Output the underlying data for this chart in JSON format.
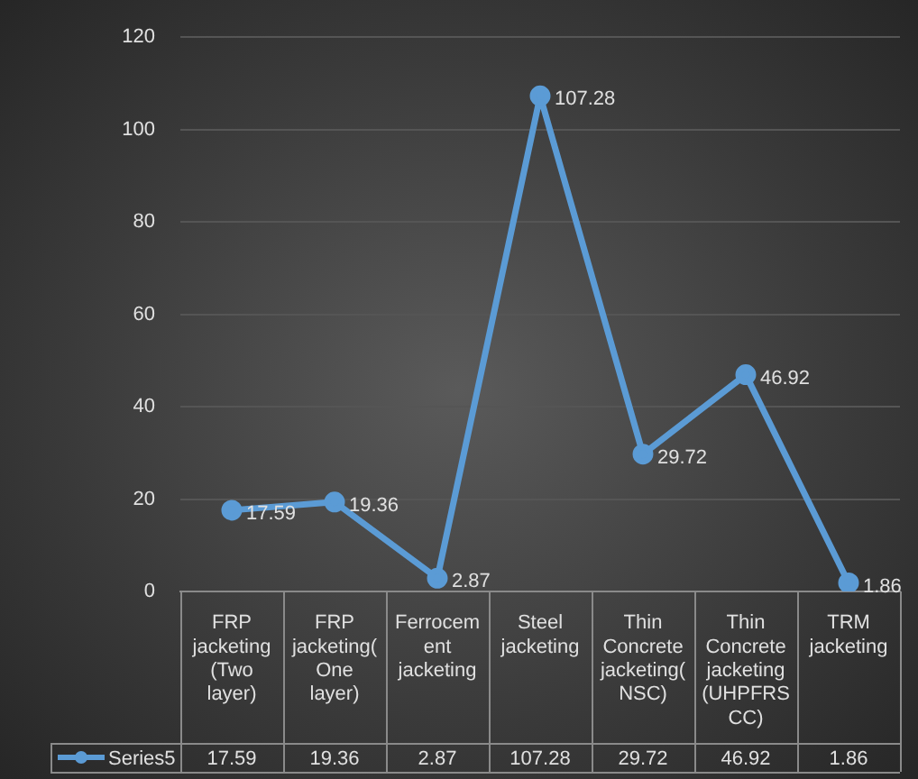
{
  "chart_data": {
    "type": "line",
    "categories": [
      "FRP jacketing (Two layer)",
      "FRP jacketing( One layer)",
      "Ferrocement jacketing",
      "Steel jacketing",
      "Thin Concrete jacketing( NSC)",
      "Thin Concrete jacketing (UHPFRSCC)",
      "TRM jacketing"
    ],
    "series": [
      {
        "name": "Series5",
        "color": "#5b9bd5",
        "values": [
          17.59,
          19.36,
          2.87,
          107.28,
          29.72,
          46.92,
          1.86
        ]
      }
    ],
    "annotations": [
      "17.59",
      "19.36",
      "2.87",
      "107.28",
      "29.72",
      "46.92",
      "1.86"
    ],
    "ylim": [
      0,
      120
    ],
    "yticks": [
      0,
      20,
      40,
      60,
      80,
      100,
      120
    ],
    "grid": "y",
    "marker": "circle",
    "line_style": "solid",
    "data_labels": true,
    "legend": "bottom"
  }
}
